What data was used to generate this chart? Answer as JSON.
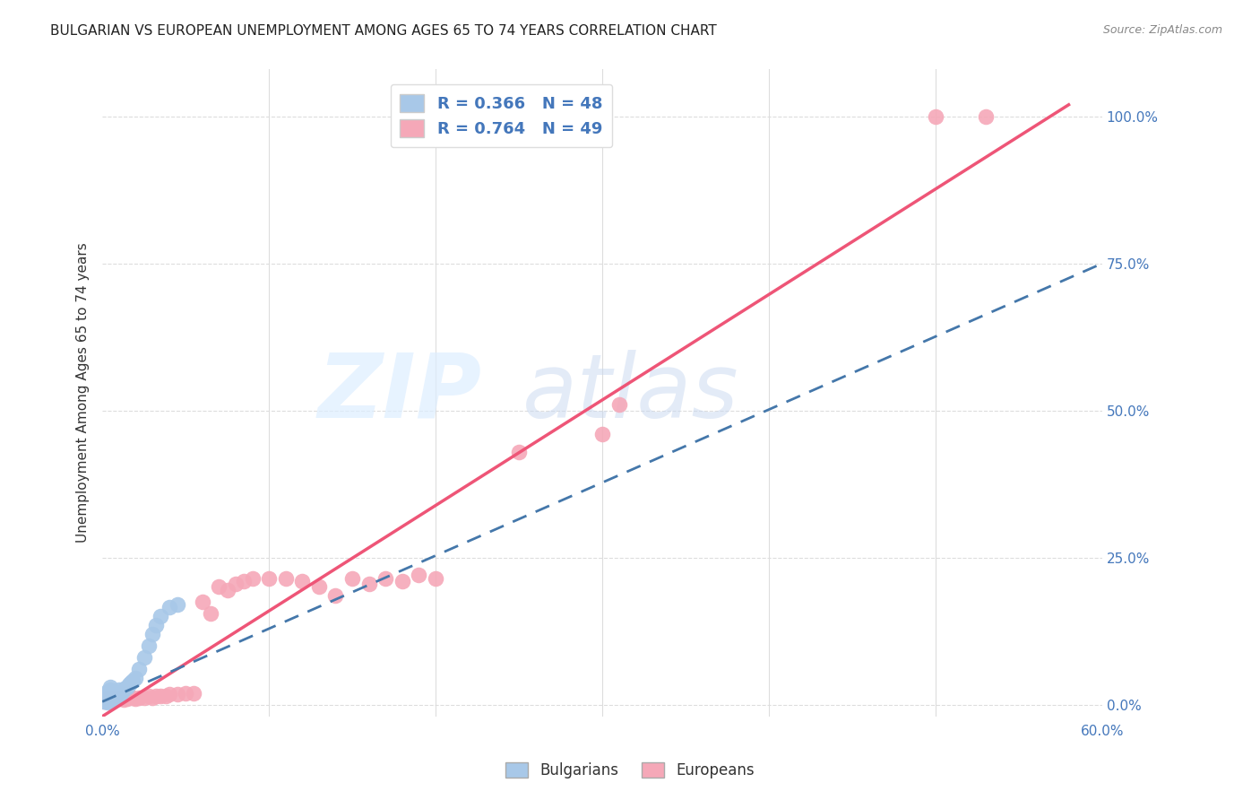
{
  "title": "BULGARIAN VS EUROPEAN UNEMPLOYMENT AMONG AGES 65 TO 74 YEARS CORRELATION CHART",
  "source": "Source: ZipAtlas.com",
  "ylabel": "Unemployment Among Ages 65 to 74 years",
  "xlim": [
    0.0,
    0.6
  ],
  "ylim": [
    -0.02,
    1.08
  ],
  "yticks_right": [
    0.0,
    0.25,
    0.5,
    0.75,
    1.0
  ],
  "yticklabels_right": [
    "0.0%",
    "25.0%",
    "50.0%",
    "75.0%",
    "100.0%"
  ],
  "bulgarians_R": 0.366,
  "bulgarians_N": 48,
  "europeans_R": 0.764,
  "europeans_N": 49,
  "bulgarians_color": "#a8c8e8",
  "europeans_color": "#f5a8b8",
  "bulgarians_line_color": "#4477aa",
  "europeans_line_color": "#ee5577",
  "legend_label_bulgarians": "Bulgarians",
  "legend_label_europeans": "Europeans",
  "bulgarians_x": [
    0.001,
    0.001,
    0.001,
    0.002,
    0.002,
    0.002,
    0.002,
    0.003,
    0.003,
    0.003,
    0.003,
    0.003,
    0.004,
    0.004,
    0.004,
    0.004,
    0.005,
    0.005,
    0.005,
    0.005,
    0.005,
    0.006,
    0.006,
    0.006,
    0.007,
    0.007,
    0.008,
    0.008,
    0.009,
    0.01,
    0.01,
    0.011,
    0.012,
    0.013,
    0.014,
    0.015,
    0.016,
    0.017,
    0.018,
    0.02,
    0.022,
    0.025,
    0.028,
    0.03,
    0.032,
    0.035,
    0.04,
    0.045
  ],
  "bulgarians_y": [
    0.005,
    0.01,
    0.015,
    0.005,
    0.008,
    0.012,
    0.018,
    0.004,
    0.009,
    0.014,
    0.019,
    0.022,
    0.006,
    0.011,
    0.016,
    0.02,
    0.005,
    0.01,
    0.015,
    0.025,
    0.03,
    0.008,
    0.013,
    0.02,
    0.01,
    0.015,
    0.012,
    0.018,
    0.015,
    0.018,
    0.025,
    0.02,
    0.022,
    0.025,
    0.028,
    0.03,
    0.035,
    0.038,
    0.04,
    0.045,
    0.06,
    0.08,
    0.1,
    0.12,
    0.135,
    0.15,
    0.165,
    0.17
  ],
  "europeans_x": [
    0.001,
    0.002,
    0.003,
    0.004,
    0.005,
    0.006,
    0.007,
    0.008,
    0.009,
    0.01,
    0.012,
    0.013,
    0.015,
    0.018,
    0.02,
    0.022,
    0.025,
    0.028,
    0.03,
    0.032,
    0.035,
    0.038,
    0.04,
    0.045,
    0.05,
    0.055,
    0.06,
    0.065,
    0.07,
    0.075,
    0.08,
    0.085,
    0.09,
    0.1,
    0.11,
    0.12,
    0.13,
    0.14,
    0.15,
    0.16,
    0.17,
    0.18,
    0.19,
    0.2,
    0.25,
    0.3,
    0.31,
    0.5,
    0.53
  ],
  "europeans_y": [
    0.005,
    0.008,
    0.01,
    0.008,
    0.01,
    0.008,
    0.01,
    0.012,
    0.01,
    0.01,
    0.012,
    0.008,
    0.01,
    0.012,
    0.01,
    0.012,
    0.012,
    0.015,
    0.012,
    0.015,
    0.015,
    0.015,
    0.018,
    0.018,
    0.02,
    0.02,
    0.175,
    0.155,
    0.2,
    0.195,
    0.205,
    0.21,
    0.215,
    0.215,
    0.215,
    0.21,
    0.2,
    0.185,
    0.215,
    0.205,
    0.215,
    0.21,
    0.22,
    0.215,
    0.43,
    0.46,
    0.51,
    1.0,
    1.0
  ],
  "bulgarians_trend": [
    0.0,
    0.6,
    0.005,
    0.75
  ],
  "europeans_trend": [
    0.0,
    0.58,
    -0.02,
    1.02
  ],
  "background_color": "#ffffff",
  "grid_color": "#dddddd",
  "grid_style": "--",
  "title_color": "#222222",
  "axis_color": "#4477bb",
  "label_color": "#333333",
  "source_color": "#888888",
  "watermark_color": "#ddeeff",
  "watermark_alpha": 0.7
}
